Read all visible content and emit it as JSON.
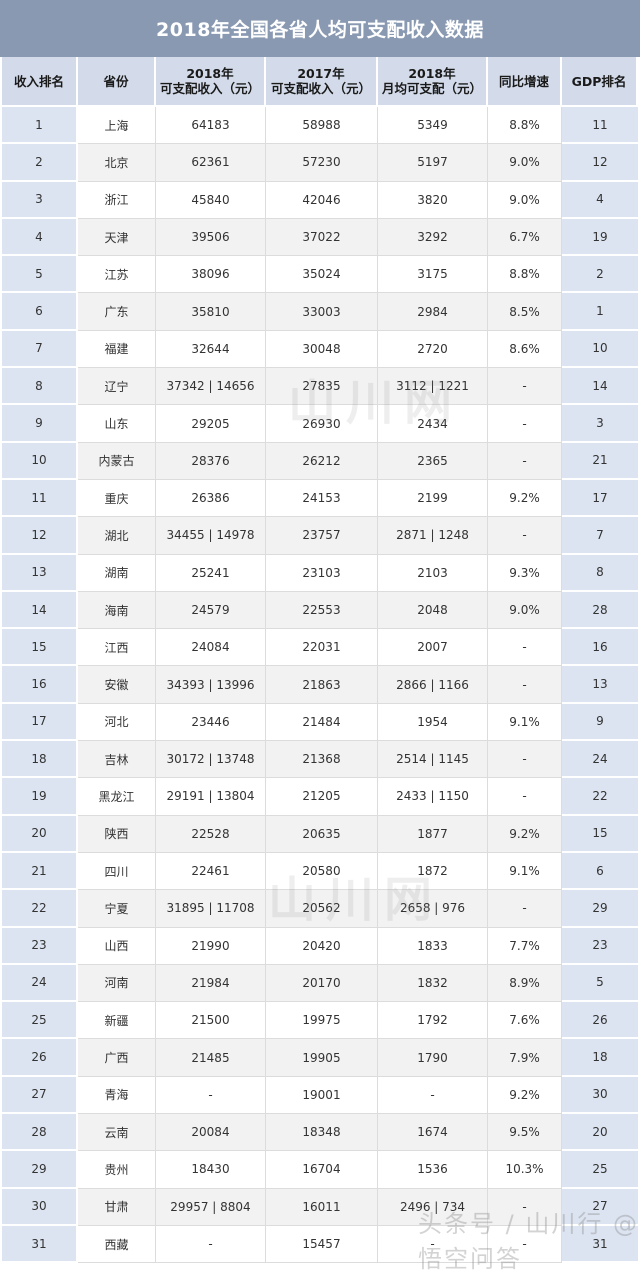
{
  "title": "2018年全国各省人均可支配收入数据",
  "headers": [
    "收入排名",
    "省份",
    "2018年\n可支配收入（元）",
    "2017年\n可支配收入（元）",
    "2018年\n月均可支配（元）",
    "同比增速",
    "GDP排名"
  ],
  "rows": [
    [
      "1",
      "上海",
      "64183",
      "58988",
      "5349",
      "8.8%",
      "11"
    ],
    [
      "2",
      "北京",
      "62361",
      "57230",
      "5197",
      "9.0%",
      "12"
    ],
    [
      "3",
      "浙江",
      "45840",
      "42046",
      "3820",
      "9.0%",
      "4"
    ],
    [
      "4",
      "天津",
      "39506",
      "37022",
      "3292",
      "6.7%",
      "19"
    ],
    [
      "5",
      "江苏",
      "38096",
      "35024",
      "3175",
      "8.8%",
      "2"
    ],
    [
      "6",
      "广东",
      "35810",
      "33003",
      "2984",
      "8.5%",
      "1"
    ],
    [
      "7",
      "福建",
      "32644",
      "30048",
      "2720",
      "8.6%",
      "10"
    ],
    [
      "8",
      "辽宁",
      "37342 | 14656",
      "27835",
      "3112 | 1221",
      "-",
      "14"
    ],
    [
      "9",
      "山东",
      "29205",
      "26930",
      "2434",
      "-",
      "3"
    ],
    [
      "10",
      "内蒙古",
      "28376",
      "26212",
      "2365",
      "-",
      "21"
    ],
    [
      "11",
      "重庆",
      "26386",
      "24153",
      "2199",
      "9.2%",
      "17"
    ],
    [
      "12",
      "湖北",
      "34455 | 14978",
      "23757",
      "2871 | 1248",
      "-",
      "7"
    ],
    [
      "13",
      "湖南",
      "25241",
      "23103",
      "2103",
      "9.3%",
      "8"
    ],
    [
      "14",
      "海南",
      "24579",
      "22553",
      "2048",
      "9.0%",
      "28"
    ],
    [
      "15",
      "江西",
      "24084",
      "22031",
      "2007",
      "-",
      "16"
    ],
    [
      "16",
      "安徽",
      "34393 | 13996",
      "21863",
      "2866 | 1166",
      "-",
      "13"
    ],
    [
      "17",
      "河北",
      "23446",
      "21484",
      "1954",
      "9.1%",
      "9"
    ],
    [
      "18",
      "吉林",
      "30172 | 13748",
      "21368",
      "2514 | 1145",
      "-",
      "24"
    ],
    [
      "19",
      "黑龙江",
      "29191 | 13804",
      "21205",
      "2433 | 1150",
      "-",
      "22"
    ],
    [
      "20",
      "陕西",
      "22528",
      "20635",
      "1877",
      "9.2%",
      "15"
    ],
    [
      "21",
      "四川",
      "22461",
      "20580",
      "1872",
      "9.1%",
      "6"
    ],
    [
      "22",
      "宁夏",
      "31895 | 11708",
      "20562",
      "2658 | 976",
      "-",
      "29"
    ],
    [
      "23",
      "山西",
      "21990",
      "20420",
      "1833",
      "7.7%",
      "23"
    ],
    [
      "24",
      "河南",
      "21984",
      "20170",
      "1832",
      "8.9%",
      "5"
    ],
    [
      "25",
      "新疆",
      "21500",
      "19975",
      "1792",
      "7.6%",
      "26"
    ],
    [
      "26",
      "广西",
      "21485",
      "19905",
      "1790",
      "7.9%",
      "18"
    ],
    [
      "27",
      "青海",
      "-",
      "19001",
      "-",
      "9.2%",
      "30"
    ],
    [
      "28",
      "云南",
      "20084",
      "18348",
      "1674",
      "9.5%",
      "20"
    ],
    [
      "29",
      "贵州",
      "18430",
      "16704",
      "1536",
      "10.3%",
      "25"
    ],
    [
      "30",
      "甘肃",
      "29957 | 8804",
      "16011",
      "2496 | 734",
      "-",
      "27"
    ],
    [
      "31",
      "西藏",
      "-",
      "15457",
      "-",
      "-",
      "31"
    ]
  ],
  "watermark": {
    "center_text": "山川网",
    "corner_text": "头条号 / 山川行",
    "corner_logo": "@悟空问答"
  }
}
